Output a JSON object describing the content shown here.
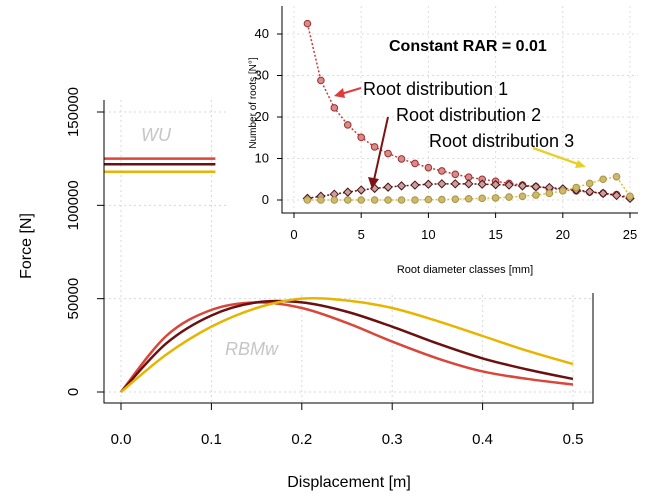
{
  "chart_data": [
    {
      "type": "line",
      "xlabel": "Displacement [m]",
      "ylabel": "Force [N]",
      "xlim": [
        0,
        0.5
      ],
      "ylim": [
        0,
        150000
      ],
      "xticks": [
        "0.0",
        "0.1",
        "0.2",
        "0.3",
        "0.4",
        "0.5"
      ],
      "yticks": [
        "0",
        "50000",
        "100000",
        "150000"
      ],
      "grid": true,
      "annotations": {
        "wu": "WU",
        "rbmw": "RBMw"
      },
      "colors": {
        "series1": "#d9463a",
        "series2": "#6b1010",
        "series3": "#e8b400"
      },
      "wu_series": [
        {
          "value": 125000,
          "x_end": 0.1
        },
        {
          "value": 122000,
          "x_end": 0.1
        },
        {
          "value": 118000,
          "x_end": 0.1
        }
      ],
      "rbmw_series": [
        {
          "x": [
            0,
            0.05,
            0.1,
            0.15,
            0.2,
            0.25,
            0.3,
            0.35,
            0.4,
            0.45,
            0.5
          ],
          "y": [
            0,
            30000,
            44000,
            48000,
            45000,
            37000,
            27000,
            18000,
            11000,
            7000,
            4000
          ]
        },
        {
          "x": [
            0,
            0.05,
            0.1,
            0.15,
            0.2,
            0.25,
            0.3,
            0.35,
            0.4,
            0.45,
            0.5
          ],
          "y": [
            0,
            26000,
            41000,
            48000,
            48000,
            43000,
            35000,
            26000,
            18000,
            12000,
            7000
          ]
        },
        {
          "x": [
            0,
            0.05,
            0.1,
            0.15,
            0.2,
            0.25,
            0.3,
            0.35,
            0.4,
            0.45,
            0.5
          ],
          "y": [
            0,
            20000,
            35000,
            45000,
            50000,
            49000,
            45000,
            38000,
            30000,
            22000,
            15000
          ]
        }
      ]
    },
    {
      "type": "scatter",
      "title": "Constant RAR = 0.01",
      "xlabel": "Root diameter classes [mm]",
      "ylabel": "Number of roots [N°]",
      "xlim": [
        0,
        25
      ],
      "ylim": [
        0,
        40
      ],
      "xticks": [
        "0",
        "5",
        "10",
        "15",
        "20",
        "25"
      ],
      "yticks": [
        "0",
        "10",
        "20",
        "30",
        "40"
      ],
      "grid": true,
      "annotations": [
        "Root distribution 1",
        "Root distribution 2",
        "Root distribution 3"
      ],
      "series": [
        {
          "name": "Root distribution 1",
          "x": [
            1,
            2,
            3,
            4,
            5,
            6,
            7,
            8,
            9,
            10,
            11,
            12,
            13,
            14,
            15,
            16,
            17,
            18,
            19,
            20,
            21,
            22,
            23,
            24,
            25
          ],
          "y": [
            42.5,
            28.8,
            22.2,
            18.1,
            15.1,
            12.8,
            11.2,
            9.9,
            8.8,
            7.8,
            7.0,
            6.2,
            5.5,
            5.0,
            4.5,
            4.0,
            3.6,
            3.2,
            2.8,
            2.5,
            2.2,
            1.9,
            1.6,
            1.3,
            0.6
          ]
        },
        {
          "name": "Root distribution 2",
          "x": [
            1,
            2,
            3,
            4,
            5,
            6,
            7,
            8,
            9,
            10,
            11,
            12,
            13,
            14,
            15,
            16,
            17,
            18,
            19,
            20,
            21,
            22,
            23,
            24,
            25
          ],
          "y": [
            0.4,
            0.9,
            1.4,
            1.9,
            2.4,
            2.8,
            3.1,
            3.4,
            3.6,
            3.8,
            3.9,
            3.9,
            3.9,
            3.8,
            3.7,
            3.6,
            3.4,
            3.2,
            3.0,
            2.7,
            2.4,
            2.0,
            1.6,
            1.1,
            0.4
          ]
        },
        {
          "name": "Root distribution 3",
          "x": [
            1,
            2,
            3,
            4,
            5,
            6,
            7,
            8,
            9,
            10,
            11,
            12,
            13,
            14,
            15,
            16,
            17,
            18,
            19,
            20,
            21,
            22,
            23,
            24,
            25
          ],
          "y": [
            0,
            0,
            0,
            0,
            0,
            0,
            0,
            0,
            0,
            0.1,
            0.1,
            0.2,
            0.3,
            0.4,
            0.5,
            0.7,
            0.9,
            1.2,
            1.6,
            2.2,
            3.0,
            4.0,
            5.0,
            5.6,
            0.9
          ]
        }
      ]
    }
  ]
}
